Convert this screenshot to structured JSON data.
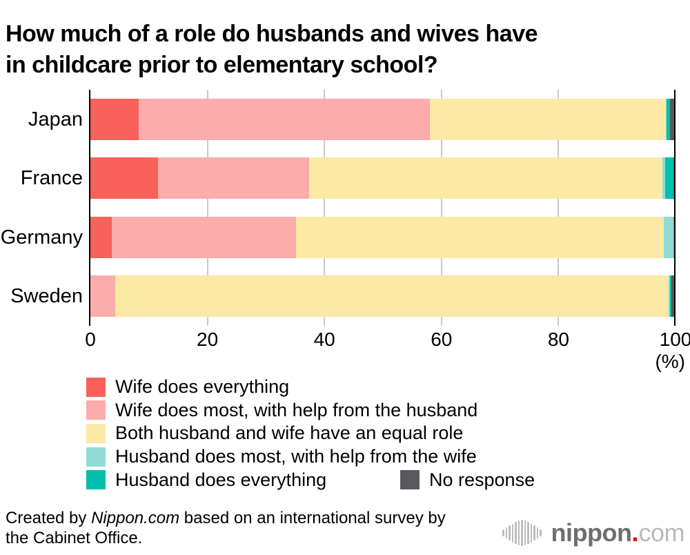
{
  "title": "How much of a role do husbands and wives have\nin childcare prior to elementary school?",
  "chart_data": {
    "type": "bar",
    "stacked": true,
    "orientation": "horizontal",
    "title": "How much of a role do husbands and wives have in childcare prior to elementary school?",
    "categories": [
      "Japan",
      "France",
      "Germany",
      "Sweden"
    ],
    "series": [
      {
        "name": "Wife does everything",
        "color": "#f9615b",
        "values": [
          8.2,
          11.6,
          3.7,
          0.0
        ]
      },
      {
        "name": "Wife does most, with help from the husband",
        "color": "#fbacab",
        "values": [
          49.8,
          25.8,
          31.4,
          4.3
        ]
      },
      {
        "name": "Both husband and wife have an equal role",
        "color": "#fce9a6",
        "values": [
          40.3,
          60.4,
          62.9,
          94.5
        ]
      },
      {
        "name": "Husband does most, with help from the wife",
        "color": "#90dcd5",
        "values": [
          0.2,
          0.4,
          1.6,
          0.3
        ]
      },
      {
        "name": "Husband does everything",
        "color": "#00bfad",
        "values": [
          0.6,
          1.4,
          0.3,
          0.2
        ]
      },
      {
        "name": "No response",
        "color": "#58595b",
        "values": [
          0.9,
          0.4,
          0.1,
          0.7
        ]
      }
    ],
    "x_ticks": [
      0,
      20,
      40,
      60,
      80,
      100
    ],
    "xlim": [
      0,
      100
    ],
    "unit": "(%)",
    "grid": "vertical-gridlines-on",
    "legend_position": "bottom"
  },
  "colors": {
    "axis": "#000000",
    "gridline": "#c9c9c9",
    "background": "#ffffff",
    "brand_red": "#e60012",
    "logo_dark_gray": "#6e6e6e",
    "logo_light_gray": "#b9b9b9"
  },
  "footer": {
    "prefix": "Created by ",
    "brand": "Nippon.com",
    "suffix": " based on an international survey by\nthe Cabinet Office."
  },
  "logo": {
    "word": "nippon",
    "dot": ".",
    "tld": "com"
  }
}
